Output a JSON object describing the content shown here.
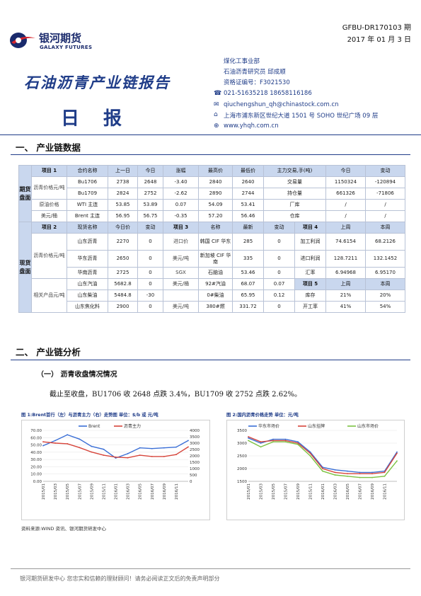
{
  "header": {
    "logo_cn": "银河期货",
    "logo_en": "GALAXY FUTURES",
    "doc_code": "GFBU-DR170103 期",
    "doc_date": "2017 年 01 月 3 日",
    "brand_colors": {
      "primary": "#1f3c88",
      "accent": "#d7262e"
    }
  },
  "title": {
    "main": "石油沥青产业链报告",
    "sub": "日报"
  },
  "contact": {
    "dept": "煤化工事业部",
    "analyst": "石油沥青研究员  邱成顺",
    "license": "资格证编号：F3021530",
    "phone": "021-51635218    18658116186",
    "email": "qiuchengshun_qh@chinastock.com.cn",
    "address": "上海市浦东新区世纪大道 1501 号 SOHO 世纪广场 09 层",
    "web": "www.yhqh.com.cn",
    "icons": [
      "phone-icon",
      "mail-icon",
      "location-icon",
      "web-icon"
    ]
  },
  "sections": {
    "s1": "一、  产业链数据",
    "s2": "二、  产业链分析",
    "sub1": "（一）  沥青收盘情况情况"
  },
  "table": {
    "futures_label": "期货盘面",
    "spot_label": "现货盘面",
    "futures_header": [
      "项目 1",
      "合约名称",
      "上一日",
      "今日",
      "涨幅",
      "最高价",
      "最低价",
      "主力交易,手(吨)",
      "今日",
      "变动"
    ],
    "futures_rows": [
      {
        "unit": "沥青价格元/吨",
        "name": "Bu1706",
        "prev": "2738",
        "today": "2648",
        "chg": "-3.40",
        "high": "2840",
        "low": "2640",
        "metric": "交易量",
        "val": "1150324",
        "diff": "-120894"
      },
      {
        "name": "Bu1709",
        "prev": "2824",
        "today": "2752",
        "chg": "-2.62",
        "high": "2890",
        "low": "2744",
        "metric": "持仓量",
        "val": "661326",
        "diff": "-71806"
      },
      {
        "unit": "原油价格",
        "name": "WTI 主连",
        "prev": "53.85",
        "today": "53.89",
        "chg": "0.07",
        "high": "54.09",
        "low": "53.41",
        "metric": "厂库",
        "val": "/",
        "diff": "/"
      },
      {
        "unit": "美元/桶",
        "name": "Brent 主连",
        "prev": "56.95",
        "today": "56.75",
        "chg": "-0.35",
        "high": "57.20",
        "low": "56.46",
        "metric": "仓库",
        "val": "/",
        "diff": "/"
      }
    ],
    "spot_header": [
      "项目 2",
      "现货名称",
      "今日价",
      "变动",
      "项目 3",
      "名称",
      "最新",
      "变动",
      "项目 4",
      "上周",
      "本周"
    ],
    "spot_group1_unit": "沥青价格元/吨",
    "spot_group2_unit": "相关产品元/吨",
    "import_label_1": "进口价",
    "import_label_2": "美元/吨",
    "sgx_label_1": "SGX",
    "sgx_label_2": "美元/桶",
    "metric5_header": "项目 5",
    "spot_rows": [
      {
        "name": "山东沥青",
        "price": "2270",
        "chg": "0",
        "name2": "韩国 CIF 华东",
        "latest": "285",
        "chg2": "0",
        "m4": "加工利润",
        "prev_week": "74.6154",
        "this_week": "68.2126"
      },
      {
        "name": "华东沥青",
        "price": "2650",
        "chg": "0",
        "name2": "新加坡 CIF 华南",
        "latest": "335",
        "chg2": "0",
        "m4": "进口利润",
        "prev_week": "128.7211",
        "this_week": "132.1452"
      },
      {
        "name": "华南沥青",
        "price": "2725",
        "chg": "0",
        "name2": "石脑油",
        "latest": "53.46",
        "chg2": "0",
        "m4": "汇率",
        "prev_week": "6.94968",
        "this_week": "6.95170"
      },
      {
        "name": "山东汽油",
        "price": "5682.8",
        "chg": "0",
        "name2": "92#汽油",
        "latest": "68.07",
        "chg2": "0.07",
        "prev_week": "上周",
        "this_week": "本周"
      },
      {
        "name": "山东柴油",
        "price": "5484.8",
        "chg": "-30",
        "name2": "0#柴油",
        "latest": "65.95",
        "chg2": "0.12",
        "m4": "库存",
        "prev_week": "21%",
        "this_week": "20%"
      },
      {
        "name": "山东焦化料",
        "price": "2900",
        "chg": "0",
        "name2": "380#燃",
        "latest": "331.72",
        "chg2": "0",
        "m4": "开工率",
        "prev_week": "41%",
        "this_week": "54%"
      }
    ]
  },
  "analysis": {
    "paragraph": "截止至收盘，BU1706 收 2648 点跌 3.4%，BU1709 收 2752 点跌 2.62%。"
  },
  "chart_data": [
    {
      "type": "line",
      "title": "图 1:Brent首行（左）与沥青主力（右）走势图   单位：$/b 或 元/吨",
      "x": [
        "2015/01",
        "2015/03",
        "2015/05",
        "2015/07",
        "2015/09",
        "2015/11",
        "2016/01",
        "2016/03",
        "2016/05",
        "2016/07",
        "2016/09",
        "2016/11",
        "2017/01"
      ],
      "series": [
        {
          "name": "Brent",
          "axis": "left",
          "color": "#3b6fd6",
          "values": [
            49,
            56,
            64,
            58,
            48,
            44,
            32,
            38,
            46,
            45,
            46,
            47,
            56
          ]
        },
        {
          "name": "沥青主力",
          "axis": "right",
          "color": "#d6453b",
          "values": [
            3100,
            3000,
            2950,
            2650,
            2300,
            2050,
            1900,
            1850,
            2050,
            1950,
            1950,
            2100,
            2700
          ]
        }
      ],
      "ylim_left": [
        0,
        70
      ],
      "ylim_right": [
        0,
        4000
      ],
      "yticks_left": [
        "0.00",
        "10.00",
        "20.00",
        "30.00",
        "40.00",
        "50.00",
        "60.00",
        "70.00"
      ],
      "yticks_right": [
        "0",
        "500",
        "1000",
        "1500",
        "2000",
        "2500",
        "3000",
        "3500",
        "4000"
      ],
      "xticks": [
        "2015/01",
        "2015/03",
        "2015/05",
        "2015/07",
        "2015/09",
        "2015/11",
        "2016/01",
        "2016/03",
        "2016/05",
        "2016/07",
        "2016/09",
        "2016/11"
      ],
      "legend": "top"
    },
    {
      "type": "line",
      "title": "图 2:国内沥青价格走势   单位：元/吨",
      "x": [
        "2015/01",
        "2015/03",
        "2015/05",
        "2015/07",
        "2015/09",
        "2015/11",
        "2016/01",
        "2016/03",
        "2016/05",
        "2016/07",
        "2016/09",
        "2016/11",
        "2017/01"
      ],
      "series": [
        {
          "name": "华东市场价",
          "color": "#3b6fd6",
          "values": [
            3200,
            3000,
            3150,
            3150,
            3050,
            2650,
            2050,
            1950,
            1900,
            1850,
            1850,
            1900,
            2650
          ]
        },
        {
          "name": "山东挂牌",
          "color": "#d6453b",
          "values": [
            3250,
            3050,
            3100,
            3100,
            3000,
            2600,
            2000,
            1850,
            1800,
            1800,
            1800,
            1850,
            2600
          ]
        },
        {
          "name": "山东市场价",
          "color": "#7cc242",
          "values": [
            3100,
            2850,
            3050,
            3050,
            2950,
            2500,
            1900,
            1750,
            1700,
            1650,
            1650,
            1700,
            2300
          ]
        }
      ],
      "ylim": [
        1500,
        3500
      ],
      "yticks": [
        "1500",
        "2000",
        "2500",
        "3000",
        "3500"
      ],
      "xticks": [
        "2015/01",
        "2015/03",
        "2015/05",
        "2015/07",
        "2015/09",
        "2015/11",
        "2016/01",
        "2016/03",
        "2016/05",
        "2016/07",
        "2016/09",
        "2016/11"
      ],
      "legend": "top"
    }
  ],
  "source": "资料来源:WIND 资讯、银河期货研发中心",
  "footer": "银河期货研发中心   您忠实和信赖的理财顾问！请务必阅读正文后的免责声明部分"
}
